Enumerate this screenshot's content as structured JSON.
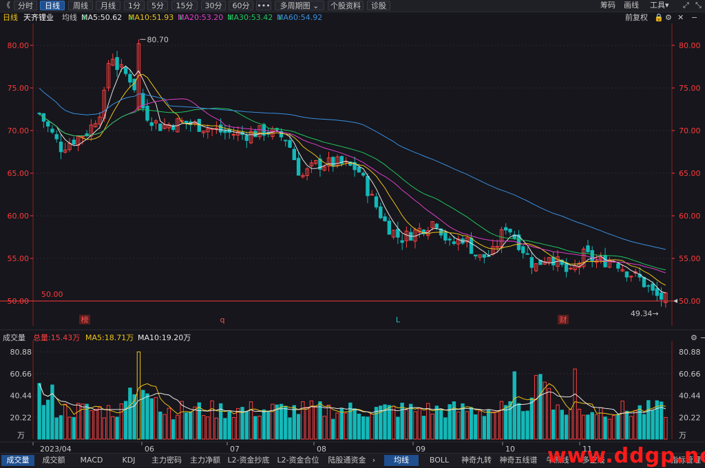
{
  "toolbar": {
    "back_glyph": "《",
    "periods": [
      "分时",
      "日线",
      "周线",
      "月线",
      "1分",
      "5分",
      "15分",
      "30分",
      "60分"
    ],
    "active_period": "日线",
    "more": "•••",
    "multi_period": "多周期图",
    "stock_info": "个股资料",
    "diagnose": "诊股",
    "chips": "筹码",
    "draw": "画线",
    "tools": "工具"
  },
  "infobar": {
    "period": "日线",
    "stock_name": "天齐锂业",
    "ma_label": "均线",
    "ma5": "MA5:50.62",
    "ma10": "MA10:51.93",
    "ma20": "MA20:53.20",
    "ma30": "MA30:53.42",
    "ma60": "MA60:54.92",
    "adjust": "前复权"
  },
  "colors": {
    "ma5": "#e8e8e8",
    "ma10": "#f0c419",
    "ma20": "#e040c8",
    "ma30": "#22c55e",
    "ma60": "#3b8fe0",
    "up": "#ff4040",
    "down": "#14b8b8",
    "axis": "#ff3b3b"
  },
  "chart_data": {
    "type": "candlestick",
    "price_axis": {
      "ticks": [
        "80.00",
        "75.00",
        "70.00",
        "65.00",
        "60.00",
        "55.00",
        "50.00"
      ],
      "ylim": [
        49,
        81
      ]
    },
    "volume_axis": {
      "ticks": [
        "80.88",
        "60.66",
        "40.44",
        "20.22"
      ],
      "unit": "万",
      "ylim": [
        0,
        80.88
      ]
    },
    "x_labels": [
      "2023/04",
      "06",
      "07",
      "08",
      "09",
      "10",
      "11"
    ],
    "annotations": {
      "high": "80.70",
      "low": "49.34",
      "reference": "50.00"
    },
    "event_markers": [
      "榜",
      "q",
      "L",
      "财"
    ],
    "volume_header": {
      "label": "成交量",
      "total": "总量:15.43万",
      "ma5": "MA5:18.71万",
      "ma10": "MA10:19.20万"
    }
  },
  "bottom": {
    "tabs_left": [
      "成交量",
      "成交额",
      "MACD",
      "KDJ",
      "主力密码",
      "主力净额",
      "L2-资金抄底",
      "L2-资金合位",
      "陆股通资金"
    ],
    "arrow": "›",
    "tabs_right": [
      "均线",
      "BOLL",
      "神奇九转",
      "神奇五线谱",
      "牛熊线",
      "多空线"
    ],
    "manage": "指标管理"
  },
  "watermark": "www.ddgp.net"
}
